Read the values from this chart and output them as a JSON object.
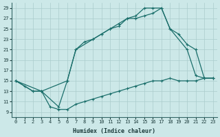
{
  "xlabel": "Humidex (Indice chaleur)",
  "xlim": [
    -0.5,
    23.5
  ],
  "ylim": [
    8,
    30
  ],
  "xticks": [
    0,
    1,
    2,
    3,
    4,
    5,
    6,
    7,
    8,
    9,
    10,
    11,
    12,
    13,
    14,
    15,
    16,
    17,
    18,
    19,
    20,
    21,
    22,
    23
  ],
  "yticks": [
    9,
    11,
    13,
    15,
    17,
    19,
    21,
    23,
    25,
    27,
    29
  ],
  "bg_color": "#cce8e8",
  "grid_color": "#aacccc",
  "line_color": "#1a6e6a",
  "line1_x": [
    0,
    1,
    2,
    3,
    4,
    5,
    6,
    7,
    8,
    9,
    10,
    11,
    12,
    13,
    14,
    15,
    16,
    17,
    18,
    19,
    20,
    21,
    22,
    23
  ],
  "line1_y": [
    15,
    14,
    13,
    13,
    10,
    9.5,
    9.5,
    10.5,
    11,
    11.5,
    12,
    12.5,
    13,
    13.5,
    14,
    14.5,
    15,
    15,
    15.5,
    15,
    15,
    15,
    15.5,
    15.5
  ],
  "line2_x": [
    0,
    2,
    3,
    5,
    6,
    7,
    8,
    9,
    10,
    11,
    12,
    13,
    14,
    15,
    16,
    17,
    18,
    20,
    21,
    22,
    23
  ],
  "line2_y": [
    15,
    13,
    13,
    10,
    15,
    21,
    22.5,
    23,
    24,
    25,
    25.5,
    27,
    27,
    27.5,
    28,
    29,
    25,
    21,
    16,
    15.5,
    15.5
  ],
  "line3_x": [
    0,
    3,
    6,
    7,
    9,
    10,
    11,
    12,
    13,
    14,
    15,
    16,
    17,
    18,
    19,
    20,
    21,
    22,
    23
  ],
  "line3_y": [
    15,
    13,
    15,
    21,
    23,
    24,
    25,
    26,
    27,
    27.5,
    29,
    29,
    29,
    25,
    24,
    22,
    21,
    15.5,
    15.5
  ]
}
